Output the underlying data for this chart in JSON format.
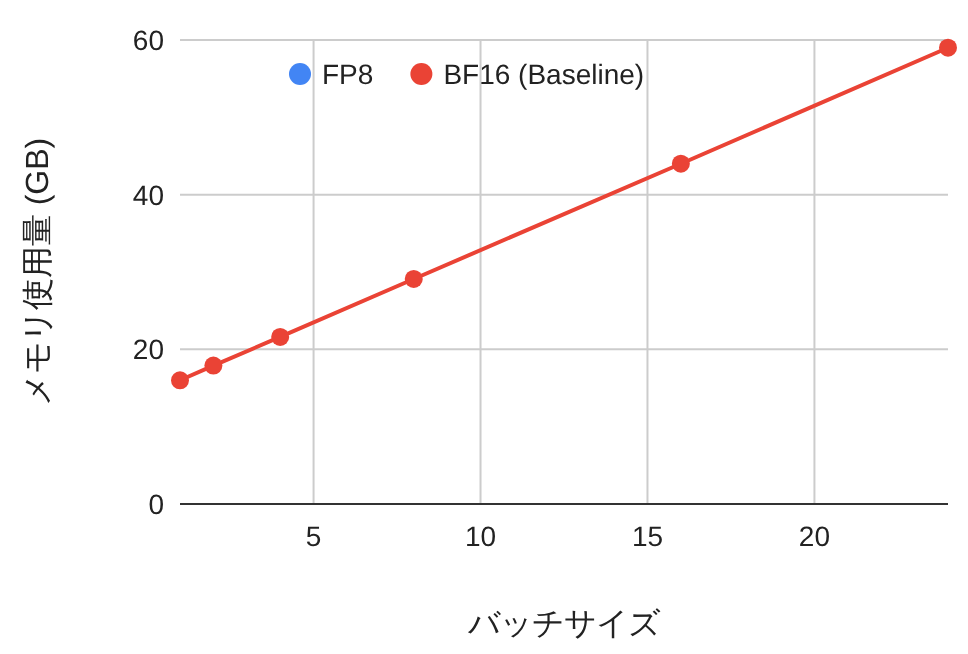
{
  "chart_data": {
    "type": "line",
    "xlabel": "バッチサイズ",
    "ylabel": "メモリ使用量 (GB)",
    "x": [
      1,
      2,
      4,
      8,
      16,
      24
    ],
    "series": [
      {
        "name": "FP8",
        "color": "#4285f4",
        "values": [
          null,
          null,
          null,
          null,
          null,
          null
        ]
      },
      {
        "name": "BF16 (Baseline)",
        "color": "#ea4335",
        "values": [
          16.0,
          17.9,
          21.6,
          29.1,
          44.0,
          59.0
        ]
      }
    ],
    "xlim": [
      1,
      24
    ],
    "ylim": [
      0,
      60
    ],
    "xticks": [
      5,
      10,
      15,
      20
    ],
    "yticks": [
      0,
      20,
      40,
      60
    ],
    "grid": true,
    "legend": "top",
    "marker": "circle",
    "line_style": "solid"
  }
}
